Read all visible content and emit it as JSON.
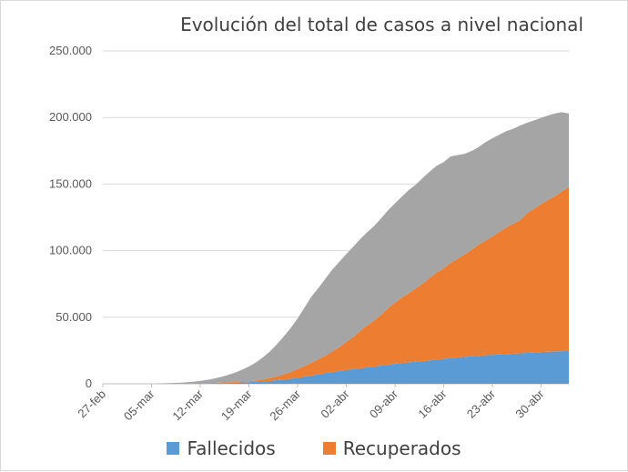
{
  "chart_data": {
    "type": "area",
    "stacked": true,
    "title": "Evolución del total de casos a nivel nacional",
    "xlabel": "",
    "ylabel": "",
    "ylim": [
      0,
      250000
    ],
    "yticks": [
      "0",
      "50.000",
      "100.000",
      "150.000",
      "200.000",
      "250.000"
    ],
    "yticks_values": [
      0,
      50000,
      100000,
      150000,
      200000,
      250000
    ],
    "xticks": [
      "27-feb",
      "05-mar",
      "12-mar",
      "19-mar",
      "26-mar",
      "02-abr",
      "09-abr",
      "16-abr",
      "23-abr",
      "30-abr"
    ],
    "x": [
      "27-feb",
      "28-feb",
      "29-feb",
      "01-mar",
      "02-mar",
      "03-mar",
      "04-mar",
      "05-mar",
      "06-mar",
      "07-mar",
      "08-mar",
      "09-mar",
      "10-mar",
      "11-mar",
      "12-mar",
      "13-mar",
      "14-mar",
      "15-mar",
      "16-mar",
      "17-mar",
      "18-mar",
      "19-mar",
      "20-mar",
      "21-mar",
      "22-mar",
      "23-mar",
      "24-mar",
      "25-mar",
      "26-mar",
      "27-mar",
      "28-mar",
      "29-mar",
      "30-mar",
      "31-mar",
      "01-abr",
      "02-abr",
      "03-abr",
      "04-abr",
      "05-abr",
      "06-abr",
      "07-abr",
      "08-abr",
      "09-abr",
      "10-abr",
      "11-abr",
      "12-abr",
      "13-abr",
      "14-abr",
      "15-abr",
      "16-abr",
      "17-abr",
      "18-abr",
      "19-abr",
      "20-abr",
      "21-abr",
      "22-abr",
      "23-abr",
      "24-abr",
      "25-abr",
      "26-abr",
      "27-abr",
      "28-abr",
      "29-abr",
      "30-abr",
      "01-may",
      "02-may",
      "03-may",
      "04-may"
    ],
    "grid": true,
    "legend_position": "bottom",
    "series": [
      {
        "name": "Fallecidos",
        "color": "#5b9bd5",
        "values": [
          0,
          0,
          0,
          0,
          0,
          0,
          0,
          0,
          0,
          0,
          0,
          0,
          0,
          100,
          200,
          300,
          400,
          500,
          600,
          800,
          1000,
          1200,
          1500,
          1800,
          2200,
          2700,
          3200,
          3800,
          4500,
          5300,
          6100,
          7000,
          8000,
          8800,
          9600,
          10400,
          11000,
          11700,
          12300,
          13000,
          13700,
          14300,
          15000,
          15600,
          16100,
          16600,
          17100,
          17600,
          18100,
          18700,
          19300,
          19800,
          20200,
          20600,
          21000,
          21400,
          21700,
          22000,
          22300,
          22600,
          22900,
          23200,
          23500,
          23800,
          24100,
          24300,
          24500,
          24700
        ]
      },
      {
        "name": "Recuperados",
        "color": "#ed7d31",
        "values": [
          0,
          0,
          0,
          0,
          0,
          0,
          0,
          0,
          0,
          0,
          0,
          0,
          0,
          0,
          100,
          200,
          300,
          400,
          500,
          600,
          700,
          800,
          1000,
          1500,
          2000,
          2800,
          3800,
          5000,
          6500,
          8000,
          9500,
          11500,
          13000,
          15500,
          18000,
          21000,
          24000,
          28000,
          31500,
          34500,
          38000,
          42500,
          46000,
          49000,
          52000,
          55000,
          58000,
          62000,
          65500,
          68000,
          71500,
          74000,
          77000,
          80000,
          83500,
          86000,
          89000,
          92000,
          95000,
          97500,
          100000,
          105000,
          108000,
          111000,
          114000,
          116500,
          120000,
          123000
        ]
      },
      {
        "name": "",
        "color": "#a5a5a5",
        "values": [
          0,
          0,
          0,
          0,
          0,
          0,
          0,
          0,
          200,
          400,
          600,
          800,
          1100,
          1400,
          1800,
          2400,
          3200,
          4200,
          5600,
          7000,
          8800,
          11000,
          13500,
          16500,
          20000,
          24000,
          28500,
          33000,
          38000,
          44000,
          50000,
          53500,
          58000,
          61500,
          64000,
          66000,
          68000,
          69000,
          70000,
          71000,
          72500,
          73500,
          74500,
          76000,
          77500,
          78000,
          79500,
          79800,
          80200,
          79800,
          80000,
          78000,
          75500,
          74200,
          73200,
          74000,
          73600,
          73100,
          72400,
          71400,
          71100,
          67800,
          66300,
          64900,
          63400,
          62200,
          59500,
          55300
        ]
      }
    ]
  }
}
